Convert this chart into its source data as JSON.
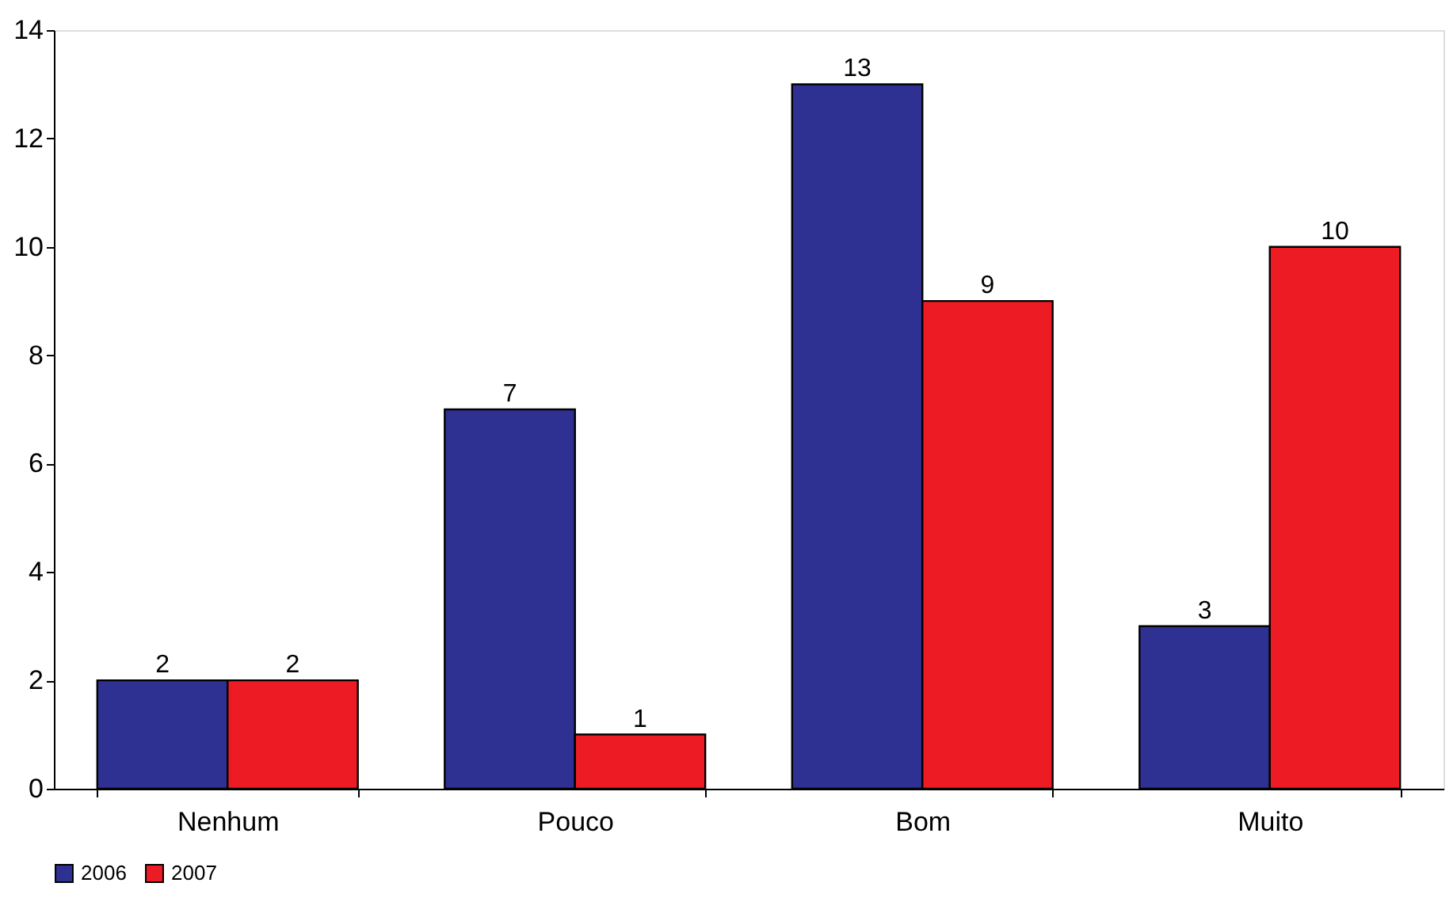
{
  "chart_data": {
    "type": "bar",
    "categories": [
      "Nenhum",
      "Pouco",
      "Bom",
      "Muito"
    ],
    "series": [
      {
        "name": "2006",
        "color": "#2e3192",
        "values": [
          2,
          7,
          13,
          3
        ]
      },
      {
        "name": "2007",
        "color": "#ed1c24",
        "values": [
          2,
          1,
          9,
          10
        ]
      }
    ],
    "ylim": [
      0,
      14
    ],
    "yticks": [
      0,
      2,
      4,
      6,
      8,
      10,
      12,
      14
    ],
    "grid": false,
    "legend": "bottom",
    "data_labels": true
  }
}
